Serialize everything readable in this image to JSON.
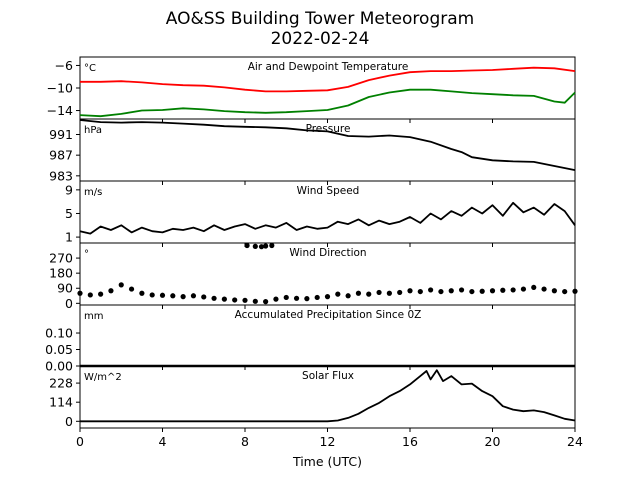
{
  "title_line1": "AO&SS Building Tower Meteorogram",
  "title_line2": "2022-02-24",
  "xlabel": "Time (UTC)",
  "colors": {
    "temperature": "#ff0000",
    "dewpoint": "#008000",
    "default": "#000000"
  },
  "chart_data": [
    {
      "type": "line",
      "title": "Air and Dewpoint Temperature",
      "unit": "°C",
      "xlim": [
        0,
        24
      ],
      "ylim": [
        -15.5,
        -4.5
      ],
      "yticks": [
        -14,
        -10,
        -6
      ],
      "ytick_labels": [
        "−14",
        "−10",
        "−6"
      ],
      "series": [
        {
          "key": "temperature",
          "x": [
            0,
            1,
            2,
            3,
            4,
            5,
            6,
            7,
            8,
            9,
            10,
            11,
            12,
            13,
            14,
            15,
            16,
            17,
            18,
            19,
            20,
            21,
            22,
            23,
            24
          ],
          "values": [
            -8.9,
            -8.9,
            -8.8,
            -9.0,
            -9.3,
            -9.5,
            -9.6,
            -9.9,
            -10.3,
            -10.6,
            -10.6,
            -10.5,
            -10.4,
            -9.8,
            -8.6,
            -7.8,
            -7.2,
            -7.0,
            -7.0,
            -6.9,
            -6.8,
            -6.6,
            -6.4,
            -6.5,
            -7.0
          ]
        },
        {
          "key": "dewpoint",
          "x": [
            0,
            1,
            2,
            3,
            4,
            5,
            6,
            7,
            8,
            9,
            10,
            11,
            12,
            13,
            14,
            15,
            16,
            17,
            18,
            19,
            20,
            21,
            22,
            23,
            23.5,
            24
          ],
          "values": [
            -14.8,
            -15.0,
            -14.6,
            -14.0,
            -13.9,
            -13.6,
            -13.8,
            -14.1,
            -14.3,
            -14.4,
            -14.3,
            -14.1,
            -13.9,
            -13.1,
            -11.6,
            -10.8,
            -10.3,
            -10.3,
            -10.6,
            -10.9,
            -11.1,
            -11.3,
            -11.4,
            -12.4,
            -12.6,
            -10.8
          ]
        }
      ]
    },
    {
      "type": "line",
      "title": "Pressure",
      "unit": "hPa",
      "xlim": [
        0,
        24
      ],
      "ylim": [
        982,
        994
      ],
      "yticks": [
        983,
        987,
        991
      ],
      "ytick_labels": [
        "983",
        "987",
        "991"
      ],
      "series": [
        {
          "key": "default",
          "x": [
            0,
            1,
            2,
            3,
            4,
            5,
            6,
            7,
            8,
            9,
            10,
            11,
            12,
            13,
            14,
            15,
            16,
            17,
            18,
            18.5,
            19,
            20,
            21,
            22,
            23,
            24
          ],
          "values": [
            993.8,
            993.4,
            993.3,
            993.4,
            993.3,
            993.1,
            992.9,
            992.6,
            992.5,
            992.4,
            992.2,
            991.8,
            991.6,
            990.7,
            990.6,
            990.8,
            990.5,
            989.6,
            988.2,
            987.6,
            986.6,
            986.0,
            985.8,
            985.7,
            984.9,
            984.1
          ]
        }
      ]
    },
    {
      "type": "line",
      "title": "Wind Speed",
      "unit": "m/s",
      "xlim": [
        0,
        24
      ],
      "ylim": [
        0,
        10.5
      ],
      "yticks": [
        1,
        5,
        9
      ],
      "ytick_labels": [
        "1",
        "5",
        "9"
      ],
      "series": [
        {
          "key": "default",
          "x": [
            0,
            0.5,
            1,
            1.5,
            2,
            2.5,
            3,
            3.5,
            4,
            4.5,
            5,
            5.5,
            6,
            6.5,
            7,
            7.5,
            8,
            8.5,
            9,
            9.5,
            10,
            10.5,
            11,
            11.5,
            12,
            12.5,
            13,
            13.5,
            14,
            14.5,
            15,
            15.5,
            16,
            16.5,
            17,
            17.5,
            18,
            18.5,
            19,
            19.5,
            20,
            20.5,
            21,
            21.5,
            22,
            22.5,
            23,
            23.5,
            24
          ],
          "values": [
            2.0,
            1.6,
            2.8,
            2.2,
            3.0,
            1.8,
            2.6,
            2.0,
            1.8,
            2.4,
            2.2,
            2.6,
            2.0,
            3.0,
            2.2,
            2.8,
            3.2,
            2.4,
            3.0,
            2.6,
            3.4,
            2.2,
            2.8,
            2.4,
            2.6,
            3.6,
            3.2,
            4.0,
            3.0,
            3.8,
            3.2,
            3.6,
            4.4,
            3.4,
            5.0,
            4.0,
            5.4,
            4.6,
            6.0,
            5.0,
            6.4,
            4.6,
            6.8,
            5.2,
            6.0,
            4.8,
            6.6,
            5.4,
            3.0
          ]
        }
      ]
    },
    {
      "type": "scatter",
      "title": "Wind Direction",
      "unit": "°",
      "xlim": [
        0,
        24
      ],
      "ylim": [
        -10,
        360
      ],
      "yticks": [
        0,
        90,
        180,
        270
      ],
      "ytick_labels": [
        "0",
        "90",
        "180",
        "270"
      ],
      "series": [
        {
          "key": "default",
          "x": [
            0,
            0.5,
            1,
            1.5,
            2,
            2.5,
            3,
            3.5,
            4,
            4.5,
            5,
            5.5,
            6,
            6.5,
            7,
            7.5,
            8,
            8.5,
            9,
            9.5,
            10,
            10.5,
            11,
            11.5,
            12,
            12.5,
            13,
            13.5,
            14,
            14.5,
            15,
            15.5,
            16,
            16.5,
            17,
            17.5,
            18,
            18.5,
            19,
            19.5,
            20,
            20.5,
            21,
            21.5,
            22,
            22.5,
            23,
            23.5,
            24
          ],
          "values": [
            60,
            50,
            55,
            75,
            110,
            85,
            60,
            50,
            48,
            45,
            40,
            45,
            38,
            30,
            25,
            20,
            18,
            12,
            10,
            25,
            35,
            30,
            28,
            35,
            40,
            55,
            45,
            60,
            55,
            65,
            60,
            65,
            75,
            70,
            80,
            70,
            75,
            80,
            70,
            72,
            75,
            78,
            80,
            85,
            95,
            85,
            75,
            70,
            72
          ]
        },
        {
          "key": "default",
          "x": [
            8.1,
            8.5,
            8.8,
            9.0,
            9.3
          ],
          "values": [
            345,
            340,
            338,
            342,
            345
          ]
        }
      ]
    },
    {
      "type": "line",
      "title": "Accumulated Precipitation Since 0Z",
      "unit": "mm",
      "xlim": [
        0,
        24
      ],
      "ylim": [
        0,
        0.185
      ],
      "yticks": [
        0.0,
        0.05,
        0.1
      ],
      "ytick_labels": [
        "0.00",
        "0.05",
        "0.10"
      ],
      "series": [
        {
          "key": "default",
          "x": [
            0,
            24
          ],
          "values": [
            0,
            0
          ]
        }
      ]
    },
    {
      "type": "area",
      "title": "Solar Flux",
      "unit": "W/m^2",
      "xlim": [
        0,
        24
      ],
      "ylim": [
        -40,
        330
      ],
      "yticks": [
        0,
        114,
        228
      ],
      "ytick_labels": [
        "0",
        "114",
        "228"
      ],
      "series": [
        {
          "key": "default",
          "x": [
            0,
            12,
            12.5,
            13,
            13.5,
            14,
            14.5,
            15,
            15.5,
            16,
            16.5,
            16.8,
            17,
            17.3,
            17.6,
            18,
            18.5,
            19,
            19.5,
            20,
            20.5,
            21,
            21.5,
            22,
            22.5,
            23,
            23.5,
            24
          ],
          "values": [
            0,
            0,
            5,
            20,
            45,
            80,
            110,
            150,
            180,
            220,
            270,
            300,
            250,
            305,
            240,
            270,
            220,
            225,
            180,
            150,
            90,
            70,
            60,
            65,
            55,
            35,
            15,
            5
          ]
        }
      ]
    }
  ],
  "x_axis": {
    "ticks": [
      0,
      4,
      8,
      12,
      16,
      20,
      24
    ],
    "tick_labels": [
      "0",
      "4",
      "8",
      "12",
      "16",
      "20",
      "24"
    ]
  }
}
